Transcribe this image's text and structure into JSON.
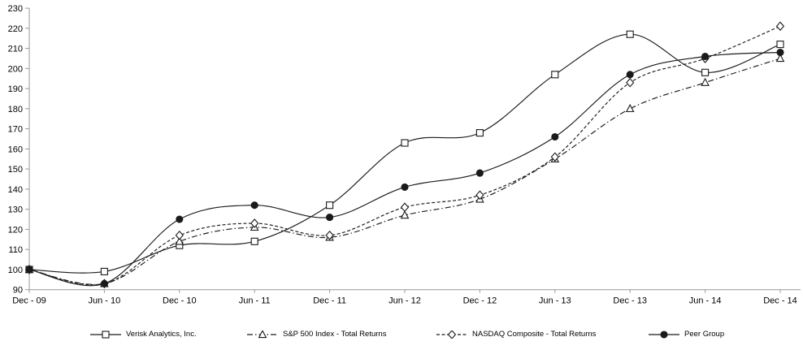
{
  "chart_data": {
    "type": "line",
    "title": "",
    "xlabel": "",
    "ylabel": "",
    "categories": [
      "Dec - 09",
      "Jun - 10",
      "Dec - 10",
      "Jun - 11",
      "Dec - 11",
      "Jun - 12",
      "Dec - 12",
      "Jun - 13",
      "Dec - 13",
      "Jun - 14",
      "Dec - 14"
    ],
    "y_axis": {
      "min": 90,
      "max": 230,
      "step": 10,
      "tick_labels": [
        "90",
        "100",
        "110",
        "120",
        "130",
        "140",
        "150",
        "160",
        "170",
        "180",
        "190",
        "200",
        "210",
        "220",
        "230"
      ]
    },
    "grid": false,
    "legend_position": "bottom",
    "series": [
      {
        "name": "Verisk Analytics, Inc.",
        "marker": "square",
        "marker_fill": "open",
        "line_style": "solid",
        "values": [
          100,
          99,
          112,
          114,
          132,
          163,
          168,
          197,
          217,
          198,
          212
        ]
      },
      {
        "name": "S&P 500 Index - Total Returns",
        "marker": "triangle",
        "marker_fill": "open",
        "line_style": "dash-dot",
        "values": [
          100,
          93,
          114,
          121,
          116,
          127,
          135,
          155,
          180,
          193,
          205
        ]
      },
      {
        "name": "NASDAQ Composite - Total Returns",
        "marker": "diamond",
        "marker_fill": "open",
        "line_style": "dashed",
        "values": [
          100,
          93,
          117,
          123,
          117,
          131,
          137,
          156,
          193,
          205,
          221
        ]
      },
      {
        "name": "Peer Group",
        "marker": "circle",
        "marker_fill": "filled",
        "line_style": "solid",
        "values": [
          100,
          93,
          125,
          132,
          126,
          141,
          148,
          166,
          197,
          206,
          208
        ]
      }
    ],
    "colors": {
      "series_line": "#1a1a1a",
      "axis_line": "#999999",
      "tick_text": "#000000",
      "background": "#ffffff",
      "marker_open_fill": "#ffffff"
    }
  }
}
